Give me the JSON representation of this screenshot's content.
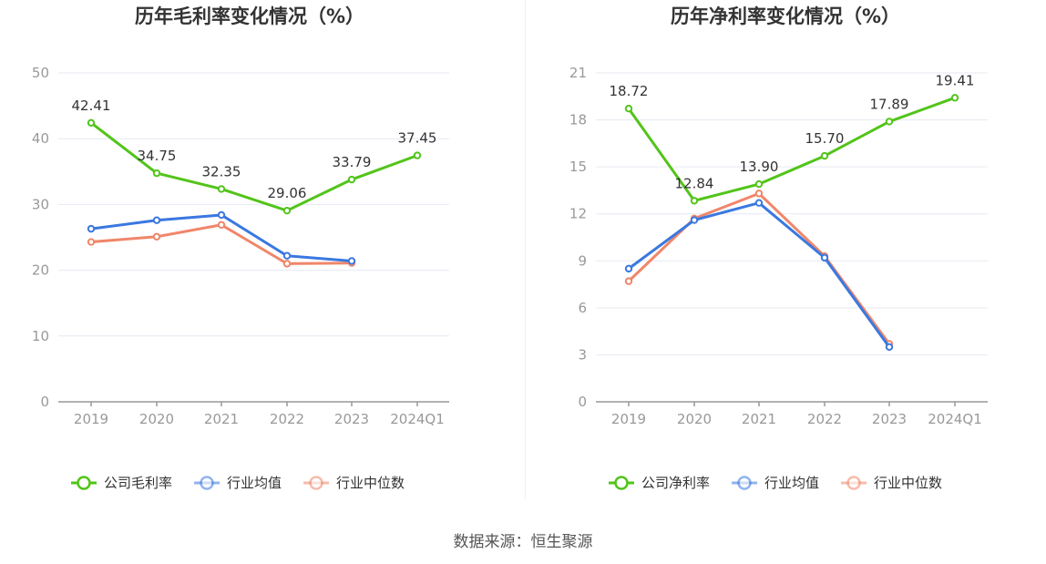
{
  "source": "数据来源：恒生聚源",
  "colors": {
    "company": "#52c41a",
    "industry_avg": "#3a78e0",
    "industry_median": "#f0866a"
  },
  "chart_data": [
    {
      "type": "line",
      "title": "历年毛利率变化情况（%）",
      "categories": [
        "2019",
        "2020",
        "2021",
        "2022",
        "2023",
        "2024Q1"
      ],
      "ylim": [
        0,
        50
      ],
      "yticks": [
        0,
        10,
        20,
        30,
        40,
        50
      ],
      "ytick_labels": [
        "0",
        "10",
        "20",
        "30",
        "40",
        "50"
      ],
      "series": [
        {
          "name": "公司毛利率",
          "key": "company",
          "values": [
            42.41,
            34.75,
            32.35,
            29.06,
            33.79,
            37.45
          ],
          "labels": [
            "42.41",
            "34.75",
            "32.35",
            "29.06",
            "33.79",
            "37.45"
          ]
        },
        {
          "name": "行业均值",
          "key": "industry_avg",
          "values": [
            26.3,
            27.6,
            28.4,
            22.2,
            21.4,
            null
          ]
        },
        {
          "name": "行业中位数",
          "key": "industry_median",
          "values": [
            24.3,
            25.1,
            26.9,
            21.0,
            21.1,
            null
          ]
        }
      ]
    },
    {
      "type": "line",
      "title": "历年净利率变化情况（%）",
      "categories": [
        "2019",
        "2020",
        "2021",
        "2022",
        "2023",
        "2024Q1"
      ],
      "ylim": [
        0,
        21
      ],
      "yticks": [
        0,
        3,
        6,
        9,
        12,
        15,
        18,
        21
      ],
      "ytick_labels": [
        "0",
        "3",
        "6",
        "9",
        "12",
        "15",
        "18",
        "21"
      ],
      "series": [
        {
          "name": "公司净利率",
          "key": "company",
          "values": [
            18.72,
            12.84,
            13.9,
            15.7,
            17.89,
            19.41
          ],
          "labels": [
            "18.72",
            "12.84",
            "13.90",
            "15.70",
            "17.89",
            "19.41"
          ]
        },
        {
          "name": "行业均值",
          "key": "industry_avg",
          "values": [
            8.5,
            11.6,
            12.7,
            9.2,
            3.5,
            null
          ]
        },
        {
          "name": "行业中位数",
          "key": "industry_median",
          "values": [
            7.7,
            11.7,
            13.3,
            9.3,
            3.7,
            null
          ]
        }
      ]
    }
  ]
}
